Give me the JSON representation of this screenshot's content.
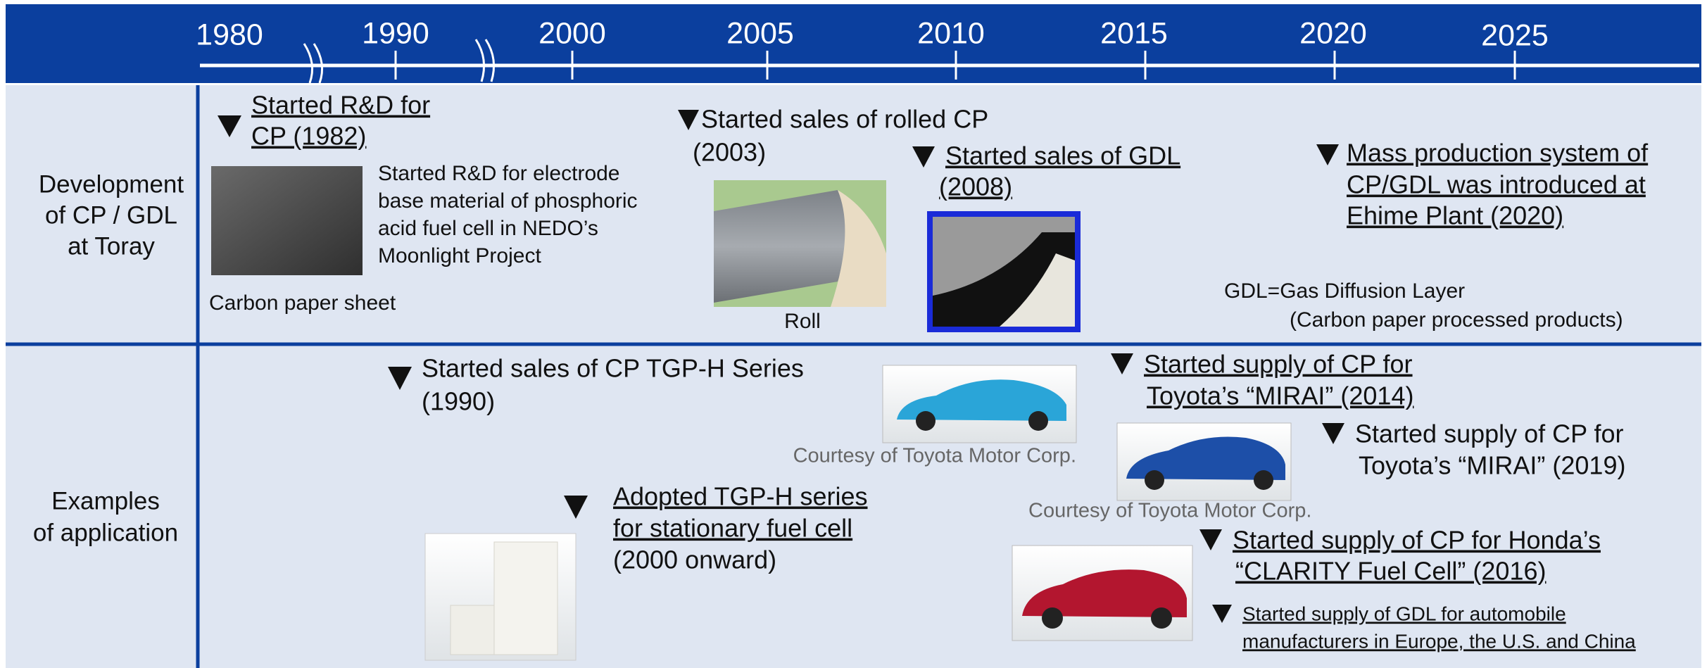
{
  "axis": {
    "years": [
      "1980",
      "1990",
      "2000",
      "2005",
      "2010",
      "2015",
      "2020",
      "2025"
    ]
  },
  "rows": [
    {
      "label": [
        "Development",
        "of CP / GDL",
        "at Toray"
      ]
    },
    {
      "label": [
        "Examples",
        "of application"
      ]
    }
  ],
  "events": [
    {
      "lines": [
        "Started R&D for",
        "CP (1982)"
      ]
    },
    {
      "lines": [
        "Started R&D for electrode",
        "base material of phosphoric",
        "acid fuel cell in NEDO’s",
        "Moonlight Project"
      ]
    },
    {
      "lines": [
        "Started sales of rolled CP",
        "(2003)"
      ]
    },
    {
      "lines": [
        "Started sales of GDL",
        "(2008)"
      ]
    },
    {
      "lines": [
        "Mass production system of",
        "CP/GDL was introduced at",
        "Ehime Plant (2020)"
      ]
    },
    {
      "lines": [
        "Started sales of CP TGP-H Series",
        "(1990)"
      ]
    },
    {
      "lines": [
        "Started supply of CP for ",
        "Toyota’s “MIRAI”  (2014)"
      ]
    },
    {
      "lines": [
        "Started supply of CP for",
        "Toyota’s “MIRAI” (2019)"
      ]
    },
    {
      "lines": [
        "Adopted TGP-H series",
        "for stationary fuel cell",
        "(2000 onward)"
      ]
    },
    {
      "lines": [
        "Started supply of CP for Honda’s",
        "“CLARITY Fuel Cell” (2016)"
      ]
    },
    {
      "lines": [
        "Started supply of GDL for automobile",
        "manufacturers in Europe, the U.S. and China"
      ]
    }
  ],
  "captions": [
    "Carbon paper sheet",
    "Roll",
    "Courtesy of Toyota Motor Corp.",
    "Courtesy of Toyota Motor Corp."
  ],
  "notes": [
    "GDL=Gas Diffusion Layer",
    "(Carbon paper processed products)"
  ]
}
